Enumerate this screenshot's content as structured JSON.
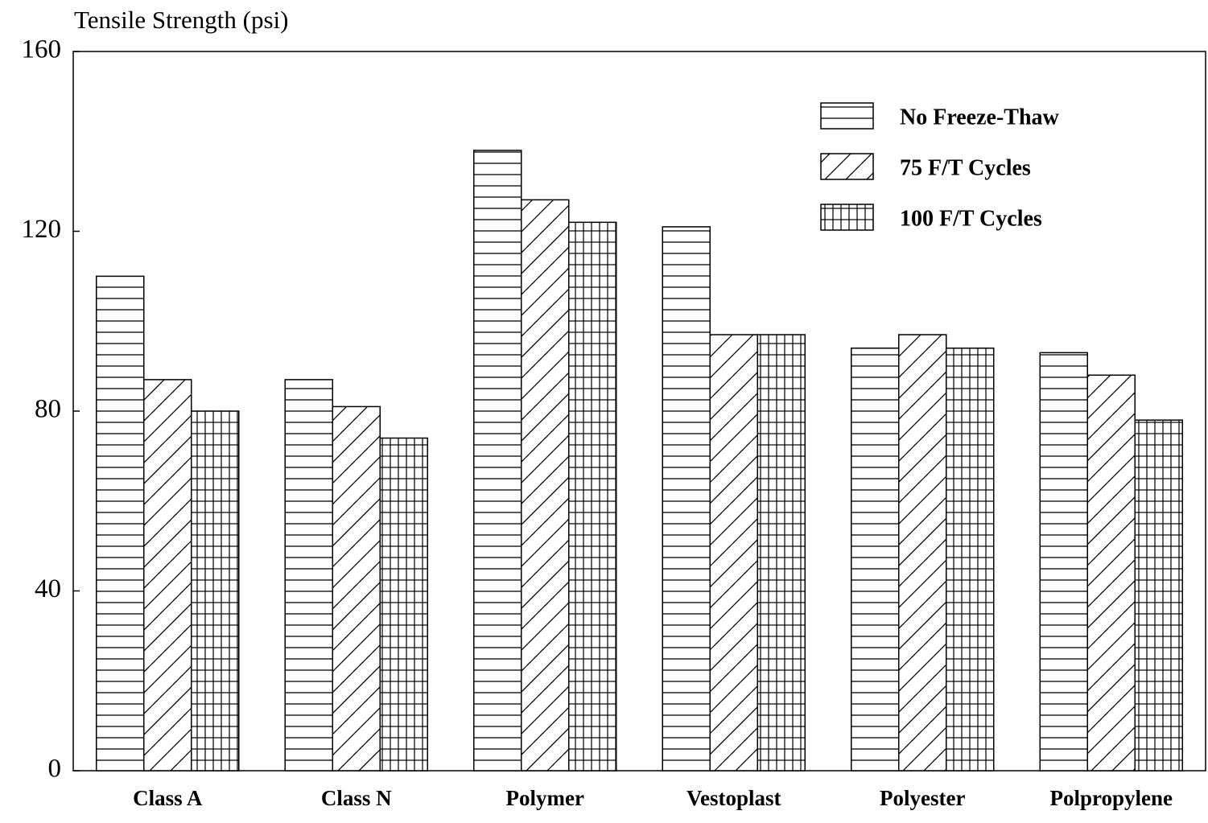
{
  "chart_data": {
    "type": "bar",
    "title": "Tensile Strength (psi)",
    "categories": [
      "Class A",
      "Class N",
      "Polymer",
      "Vestoplast",
      "Polyester",
      "Polpropylene"
    ],
    "series": [
      {
        "name": "No Freeze-Thaw",
        "color": "#000000",
        "pattern": "horizontal",
        "values": [
          110,
          87,
          138,
          121,
          94,
          93
        ]
      },
      {
        "name": "75 F/T Cycles",
        "color": "#000000",
        "pattern": "diagonal",
        "values": [
          87,
          81,
          127,
          97,
          97,
          88
        ]
      },
      {
        "name": "100 F/T Cycles",
        "color": "#000000",
        "pattern": "grid",
        "values": [
          80,
          74,
          122,
          97,
          94,
          78
        ]
      }
    ],
    "ylim": [
      0,
      160
    ],
    "yticks": [
      0,
      40,
      80,
      120,
      160
    ],
    "legend": "upper right"
  }
}
